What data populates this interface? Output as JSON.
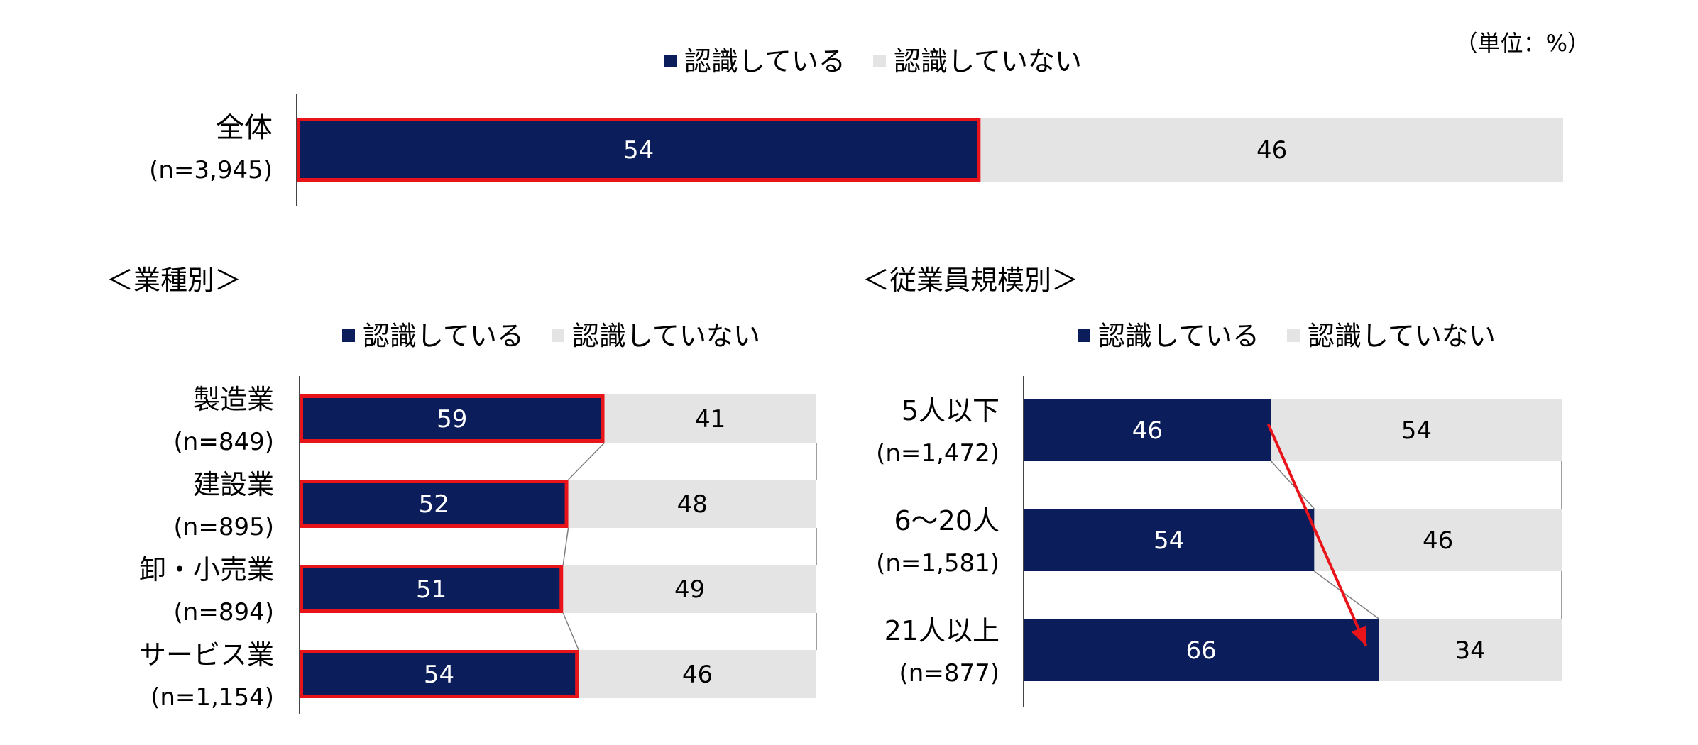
{
  "unit_label": "（単位：%）",
  "legend": {
    "recognize": "認識している",
    "not_recognize": "認識していない"
  },
  "colors": {
    "recognize": "#0b1e5b",
    "not_recognize": "#e4e4e4",
    "highlight_border": "#e8141a",
    "arrow": "#e8141a",
    "connector": "#7f7f7f"
  },
  "sections": {
    "industry_title": "＜業種別＞",
    "size_title": "＜従業員規模別＞"
  },
  "chart_data": [
    {
      "type": "bar",
      "stacked": true,
      "orientation": "horizontal",
      "id": "overall",
      "categories": [
        "全体"
      ],
      "sample_sizes": [
        "(n=3,945)"
      ],
      "series": [
        {
          "name": "認識している",
          "values": [
            54
          ]
        },
        {
          "name": "認識していない",
          "values": [
            46
          ]
        }
      ],
      "xlim": [
        0,
        100
      ],
      "legend_position": "top"
    },
    {
      "type": "bar",
      "stacked": true,
      "orientation": "horizontal",
      "id": "industry",
      "categories": [
        "製造業",
        "建設業",
        "卸・小売業",
        "サービス業"
      ],
      "sample_sizes": [
        "(n=849)",
        "(n=895)",
        "(n=894)",
        "(n=1,154)"
      ],
      "series": [
        {
          "name": "認識している",
          "values": [
            59,
            52,
            51,
            54
          ]
        },
        {
          "name": "認識していない",
          "values": [
            41,
            48,
            49,
            46
          ]
        }
      ],
      "xlim": [
        0,
        100
      ],
      "legend_position": "top"
    },
    {
      "type": "bar",
      "stacked": true,
      "orientation": "horizontal",
      "id": "size",
      "categories": [
        "5人以下",
        "6〜20人",
        "21人以上"
      ],
      "sample_sizes": [
        "(n=1,472)",
        "(n=1,581)",
        "(n=877)"
      ],
      "series": [
        {
          "name": "認識している",
          "values": [
            46,
            54,
            66
          ]
        },
        {
          "name": "認識していない",
          "values": [
            54,
            46,
            34
          ]
        }
      ],
      "xlim": [
        0,
        100
      ],
      "legend_position": "top"
    }
  ]
}
